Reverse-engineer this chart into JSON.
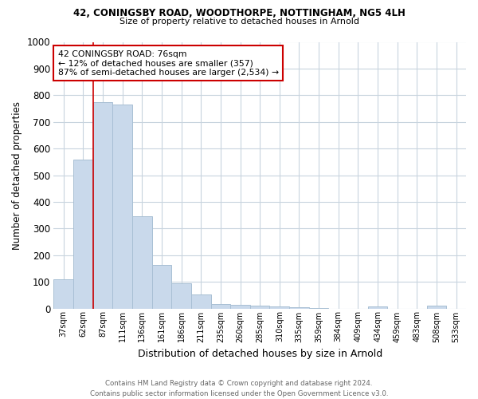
{
  "title_line1": "42, CONINGSBY ROAD, WOODTHORPE, NOTTINGHAM, NG5 4LH",
  "title_line2": "Size of property relative to detached houses in Arnold",
  "xlabel": "Distribution of detached houses by size in Arnold",
  "ylabel": "Number of detached properties",
  "categories": [
    "37sqm",
    "62sqm",
    "87sqm",
    "111sqm",
    "136sqm",
    "161sqm",
    "186sqm",
    "211sqm",
    "235sqm",
    "260sqm",
    "285sqm",
    "310sqm",
    "335sqm",
    "359sqm",
    "384sqm",
    "409sqm",
    "434sqm",
    "459sqm",
    "483sqm",
    "508sqm",
    "533sqm"
  ],
  "values": [
    110,
    557,
    775,
    765,
    345,
    162,
    95,
    53,
    18,
    13,
    10,
    7,
    5,
    3,
    0,
    0,
    8,
    0,
    0,
    10,
    0
  ],
  "bar_color": "#c9d9eb",
  "bar_edge_color": "#a8bfd4",
  "vline_color": "#cc0000",
  "vline_position": 2.5,
  "annotation_text": "42 CONINGSBY ROAD: 76sqm\n← 12% of detached houses are smaller (357)\n87% of semi-detached houses are larger (2,534) →",
  "annotation_box_color": "#ffffff",
  "annotation_box_edge": "#cc0000",
  "footer_line1": "Contains HM Land Registry data © Crown copyright and database right 2024.",
  "footer_line2": "Contains public sector information licensed under the Open Government Licence v3.0.",
  "ylim": [
    0,
    1000
  ],
  "yticks": [
    0,
    100,
    200,
    300,
    400,
    500,
    600,
    700,
    800,
    900,
    1000
  ],
  "background_color": "#ffffff",
  "grid_color": "#c8d4de"
}
